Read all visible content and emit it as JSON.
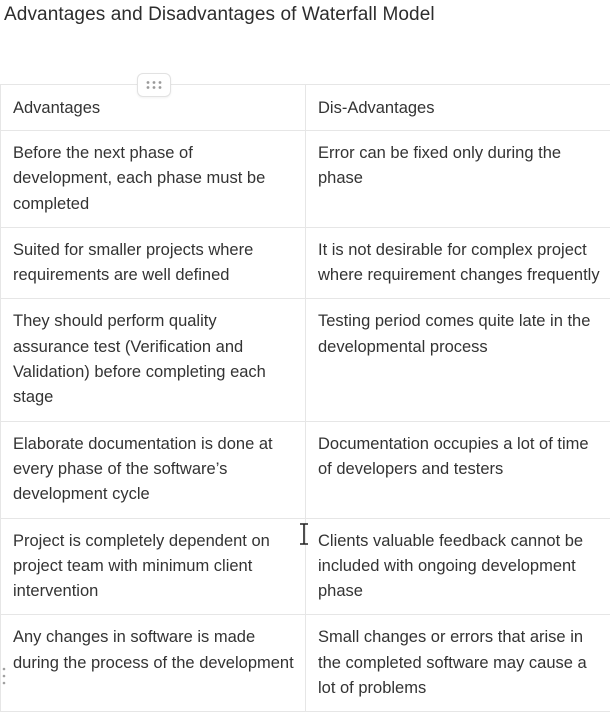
{
  "page": {
    "title": "Advantages and Disadvantages of Waterfall Model"
  },
  "table": {
    "headers": {
      "advantages": "Advantages",
      "disadvantages": "Dis-Advantages"
    },
    "rows": [
      {
        "advantage": "Before the next phase of development, each phase must be completed",
        "disadvantage": "Error can be fixed only during the phase"
      },
      {
        "advantage": "Suited for smaller projects where requirements are well defined",
        "disadvantage": "It is not desirable for complex project where requirement changes frequently"
      },
      {
        "advantage": "They should perform quality assurance test (Verification and Validation) before completing each stage",
        "disadvantage": "Testing period comes quite late in the developmental process"
      },
      {
        "advantage": "Elaborate documentation is done at every phase of the software’s development cycle",
        "disadvantage": "Documentation occupies a lot of time of developers and testers"
      },
      {
        "advantage": "Project is completely dependent on project team with minimum client intervention",
        "disadvantage": "Clients valuable feedback cannot be included with ongoing development phase"
      },
      {
        "advantage": "Any changes in software is made during the process of the development",
        "disadvantage": "Small changes or errors that arise in the completed software may cause a lot of problems"
      }
    ]
  },
  "icons": {
    "column_drag_handle": "drag-dots-icon",
    "row_drag_handle": "drag-dots-vertical-icon",
    "text_cursor": "text-cursor-icon"
  }
}
